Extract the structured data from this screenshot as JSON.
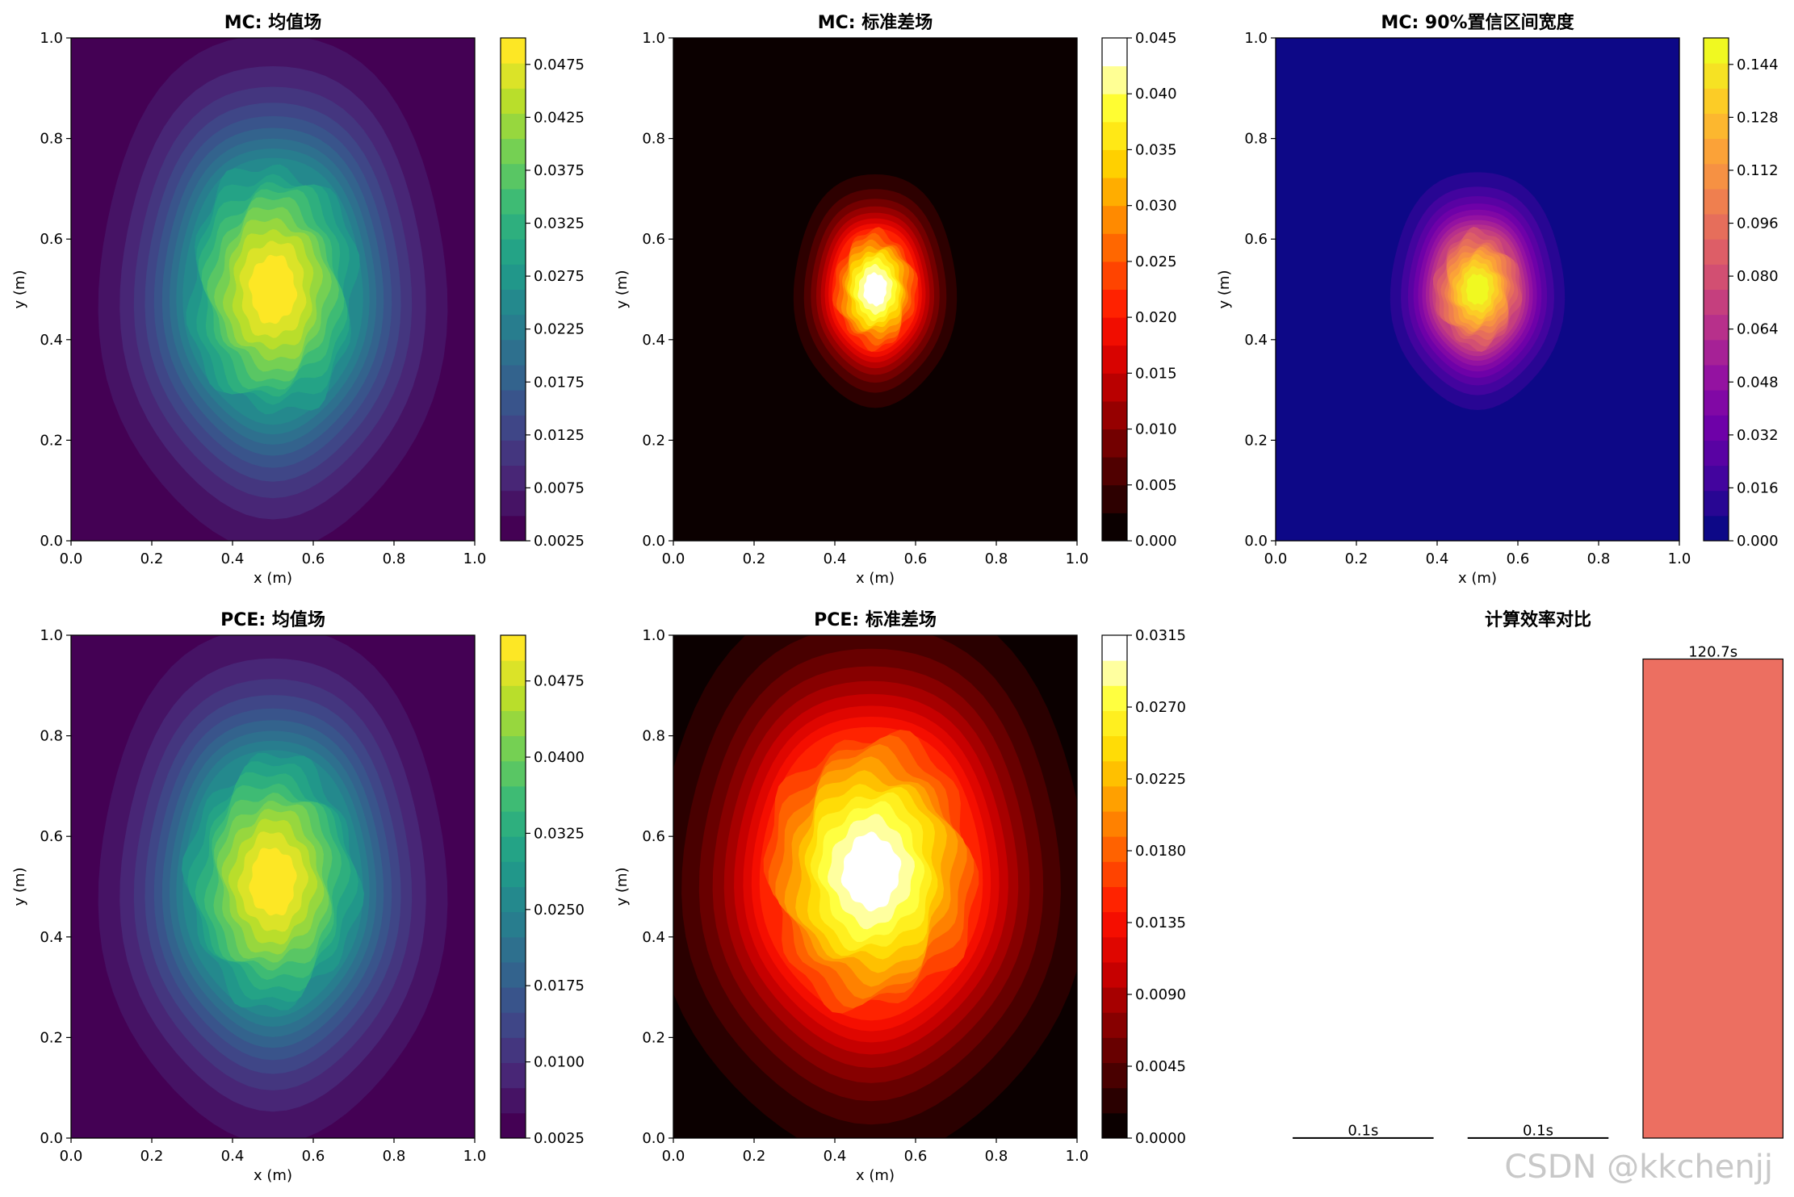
{
  "chart_data": [
    {
      "id": "mc_mean",
      "type": "heatmap",
      "title": "MC: 均值场",
      "xlabel": "x (m)",
      "ylabel": "y (m)",
      "xlim": [
        0,
        1
      ],
      "ylim": [
        0,
        1
      ],
      "xticks": [
        "0.0",
        "0.2",
        "0.4",
        "0.6",
        "0.8",
        "1.0"
      ],
      "yticks": [
        "0.0",
        "0.2",
        "0.4",
        "0.6",
        "0.8",
        "1.0"
      ],
      "cmap": "viridis",
      "levels": 20,
      "field": {
        "x0": 0.5,
        "y0": 0.5,
        "rx": 0.42,
        "ry": 0.5,
        "min": 0.0025,
        "max": 0.05
      },
      "colorbar": {
        "range": [
          0.0025,
          0.05
        ],
        "ticks": [
          "0.0025",
          "0.0075",
          "0.0125",
          "0.0175",
          "0.0225",
          "0.0275",
          "0.0325",
          "0.0375",
          "0.0425",
          "0.0475"
        ]
      }
    },
    {
      "id": "mc_std",
      "type": "heatmap",
      "title": "MC: 标准差场",
      "xlabel": "x (m)",
      "ylabel": "y (m)",
      "xlim": [
        0,
        1
      ],
      "ylim": [
        0,
        1
      ],
      "xticks": [
        "0.0",
        "0.2",
        "0.4",
        "0.6",
        "0.8",
        "1.0"
      ],
      "yticks": [
        "0.0",
        "0.2",
        "0.4",
        "0.6",
        "0.8",
        "1.0"
      ],
      "cmap": "hot",
      "levels": 18,
      "field": {
        "x0": 0.5,
        "y0": 0.5,
        "rx": 0.2,
        "ry": 0.23,
        "min": 0.0,
        "max": 0.045
      },
      "colorbar": {
        "range": [
          0.0,
          0.045
        ],
        "ticks": [
          "0.000",
          "0.005",
          "0.010",
          "0.015",
          "0.020",
          "0.025",
          "0.030",
          "0.035",
          "0.040",
          "0.045"
        ]
      }
    },
    {
      "id": "mc_ci",
      "type": "heatmap",
      "title": "MC: 90%置信区间宽度",
      "xlabel": "x (m)",
      "ylabel": "y (m)",
      "xlim": [
        0,
        1
      ],
      "ylim": [
        0,
        1
      ],
      "xticks": [
        "0.0",
        "0.2",
        "0.4",
        "0.6",
        "0.8",
        "1.0"
      ],
      "yticks": [
        "0.0",
        "0.2",
        "0.4",
        "0.6",
        "0.8",
        "1.0"
      ],
      "cmap": "plasma",
      "levels": 20,
      "field": {
        "x0": 0.5,
        "y0": 0.5,
        "rx": 0.21,
        "ry": 0.23,
        "min": 0.0,
        "max": 0.152
      },
      "colorbar": {
        "range": [
          0.0,
          0.152
        ],
        "ticks": [
          "0.000",
          "0.016",
          "0.032",
          "0.048",
          "0.064",
          "0.080",
          "0.096",
          "0.112",
          "0.128",
          "0.144"
        ]
      }
    },
    {
      "id": "pce_mean",
      "type": "heatmap",
      "title": "PCE: 均值场",
      "xlabel": "x (m)",
      "ylabel": "y (m)",
      "xlim": [
        0,
        1
      ],
      "ylim": [
        0,
        1
      ],
      "xticks": [
        "0.0",
        "0.2",
        "0.4",
        "0.6",
        "0.8",
        "1.0"
      ],
      "yticks": [
        "0.0",
        "0.2",
        "0.4",
        "0.6",
        "0.8",
        "1.0"
      ],
      "cmap": "viridis",
      "levels": 20,
      "field": {
        "x0": 0.5,
        "y0": 0.51,
        "rx": 0.42,
        "ry": 0.5,
        "min": 0.0025,
        "max": 0.052
      },
      "colorbar": {
        "range": [
          0.0025,
          0.052
        ],
        "ticks": [
          "0.0025",
          "0.0100",
          "0.0175",
          "0.0250",
          "0.0325",
          "0.0400",
          "0.0475"
        ]
      }
    },
    {
      "id": "pce_std",
      "type": "heatmap",
      "title": "PCE: 标准差场",
      "xlabel": "x (m)",
      "ylabel": "y (m)",
      "xlim": [
        0,
        1
      ],
      "ylim": [
        0,
        1
      ],
      "xticks": [
        "0.0",
        "0.2",
        "0.4",
        "0.6",
        "0.8",
        "1.0"
      ],
      "yticks": [
        "0.0",
        "0.2",
        "0.4",
        "0.6",
        "0.8",
        "1.0"
      ],
      "cmap": "hot",
      "levels": 20,
      "field": {
        "x0": 0.49,
        "y0": 0.53,
        "rx": 0.52,
        "ry": 0.55,
        "min": 0.0,
        "max": 0.0315
      },
      "colorbar": {
        "range": [
          0.0,
          0.0315
        ],
        "ticks": [
          "0.0000",
          "0.0045",
          "0.0090",
          "0.0135",
          "0.0180",
          "0.0225",
          "0.0270",
          "0.0315"
        ]
      }
    },
    {
      "id": "efficiency",
      "type": "bar",
      "title": "计算效率对比",
      "categories": [
        "",
        "",
        ""
      ],
      "values": [
        0.1,
        0.1,
        120.7
      ],
      "labels": [
        "0.1s",
        "0.1s",
        "120.7s"
      ],
      "colors": [
        "#3498db",
        "#2ecc71",
        "#ec6f61"
      ],
      "ylim": [
        0,
        126.7
      ],
      "axes_visible": false
    }
  ],
  "watermark": "CSDN @kkchenjj"
}
